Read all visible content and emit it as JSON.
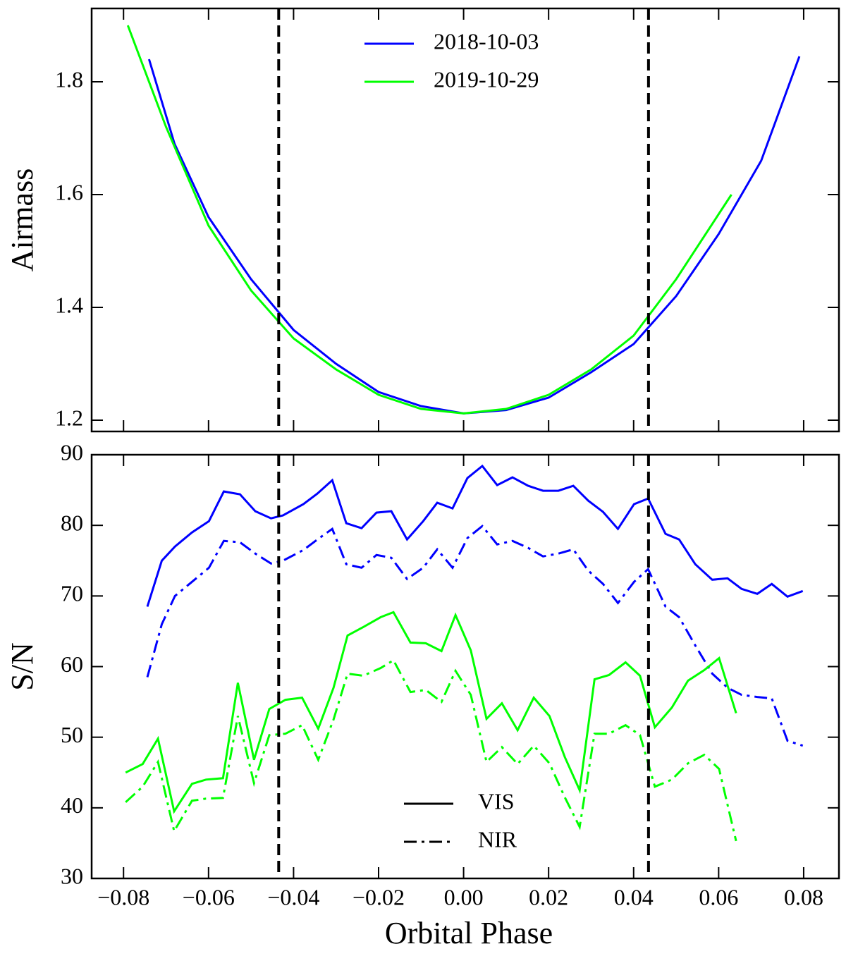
{
  "chart_data": [
    {
      "type": "line",
      "ylabel": "Airmass",
      "xlim": [
        -0.0875,
        0.0883
      ],
      "xticks": [
        {
          "value": -0.08,
          "label": "−0.08"
        },
        {
          "value": -0.06,
          "label": "−0.06"
        },
        {
          "value": -0.04,
          "label": "−0.04"
        },
        {
          "value": -0.02,
          "label": "−0.02"
        },
        {
          "value": 0,
          "label": "0.00"
        },
        {
          "value": 0.02,
          "label": "0.02"
        },
        {
          "value": 0.04,
          "label": "0.04"
        },
        {
          "value": 0.06,
          "label": "0.06"
        },
        {
          "value": 0.08,
          "label": "0.08"
        }
      ],
      "show_xtick_labels": false,
      "ylim": [
        1.18,
        1.93
      ],
      "yticks": [
        1.2,
        1.4,
        1.6,
        1.8
      ],
      "vlines": [
        -0.0435,
        0.0435
      ],
      "legend_color": null,
      "series": [
        {
          "name": "2018-10-03",
          "color": "#0000ff",
          "dash": "solid",
          "x": [
            -0.074,
            -0.068,
            -0.06,
            -0.05,
            -0.04,
            -0.03,
            -0.02,
            -0.01,
            0.0,
            0.01,
            0.02,
            0.03,
            0.04,
            0.05,
            0.06,
            0.07,
            0.079
          ],
          "values": [
            1.84,
            1.69,
            1.56,
            1.45,
            1.36,
            1.3,
            1.25,
            1.225,
            1.212,
            1.218,
            1.24,
            1.285,
            1.335,
            1.42,
            1.53,
            1.66,
            1.845
          ]
        },
        {
          "name": "2019-10-29",
          "color": "#00ff00",
          "dash": "solid",
          "x": [
            -0.079,
            -0.07,
            -0.06,
            -0.05,
            -0.04,
            -0.03,
            -0.02,
            -0.01,
            0.0,
            0.01,
            0.02,
            0.03,
            0.04,
            0.05,
            0.063
          ],
          "values": [
            1.9,
            1.72,
            1.545,
            1.43,
            1.345,
            1.29,
            1.245,
            1.22,
            1.212,
            1.22,
            1.245,
            1.29,
            1.35,
            1.45,
            1.6
          ]
        }
      ]
    },
    {
      "type": "line",
      "ylabel": "S/N",
      "xlabel": "Orbital Phase",
      "xlim": [
        -0.0875,
        0.0883
      ],
      "xticks": [
        {
          "value": -0.08,
          "label": "−0.08"
        },
        {
          "value": -0.06,
          "label": "−0.06"
        },
        {
          "value": -0.04,
          "label": "−0.04"
        },
        {
          "value": -0.02,
          "label": "−0.02"
        },
        {
          "value": 0,
          "label": "0.00"
        },
        {
          "value": 0.02,
          "label": "0.02"
        },
        {
          "value": 0.04,
          "label": "0.04"
        },
        {
          "value": 0.06,
          "label": "0.06"
        },
        {
          "value": 0.08,
          "label": "0.08"
        }
      ],
      "show_xtick_labels": true,
      "ylim": [
        30,
        90
      ],
      "yticks": [
        30,
        40,
        50,
        60,
        70,
        80,
        90
      ],
      "vlines": [
        -0.0435,
        0.0435
      ],
      "legend_color": "#000000",
      "series": [
        {
          "name": "VIS",
          "color": "#0000ff",
          "dash": "solid",
          "x": [
            -0.0744,
            -0.071,
            -0.0679,
            -0.0639,
            -0.0599,
            -0.0564,
            -0.0526,
            -0.049,
            -0.0453,
            -0.0425,
            -0.0377,
            -0.0344,
            -0.0309,
            -0.0276,
            -0.024,
            -0.0205,
            -0.017,
            -0.0133,
            -0.0095,
            -0.0062,
            -0.0026,
            0.0009,
            0.0044,
            0.0079,
            0.0115,
            0.0152,
            0.0187,
            0.0223,
            0.0258,
            0.0293,
            0.0328,
            0.0363,
            0.0401,
            0.0434,
            0.0475,
            0.0507,
            0.0545,
            0.0585,
            0.0621,
            0.0654,
            0.0691,
            0.0725,
            0.0762,
            0.0798
          ],
          "values": [
            68.5,
            75,
            77,
            79,
            80.6,
            84.8,
            84.4,
            82,
            81,
            81.4,
            83,
            84.5,
            86.4,
            80.3,
            79.6,
            81.8,
            82,
            78,
            80.6,
            83.2,
            82.4,
            86.7,
            88.4,
            85.7,
            86.8,
            85.6,
            84.9,
            84.9,
            85.6,
            83.5,
            81.9,
            79.5,
            83,
            83.8,
            78.8,
            78,
            74.5,
            72.3,
            72.5,
            71,
            70.3,
            71.7,
            69.9,
            70.7
          ]
        },
        {
          "name": "NIR",
          "color": "#0000ff",
          "dash": "dashdot",
          "x": [
            -0.0744,
            -0.071,
            -0.0679,
            -0.0639,
            -0.0599,
            -0.0564,
            -0.0526,
            -0.049,
            -0.0453,
            -0.0425,
            -0.0377,
            -0.0344,
            -0.0309,
            -0.0276,
            -0.024,
            -0.0205,
            -0.017,
            -0.0133,
            -0.0095,
            -0.0062,
            -0.0026,
            0.0009,
            0.0044,
            0.0079,
            0.0115,
            0.0152,
            0.0187,
            0.0223,
            0.0258,
            0.0293,
            0.0328,
            0.0363,
            0.0401,
            0.0434,
            0.0475,
            0.0507,
            0.0545,
            0.0585,
            0.0621,
            0.0654,
            0.0691,
            0.0725,
            0.0762,
            0.0798
          ],
          "values": [
            58.5,
            66,
            70,
            72,
            74,
            77.8,
            77.6,
            76,
            74.6,
            75,
            76.5,
            78,
            79.5,
            74.5,
            74,
            75.8,
            75.4,
            72.4,
            74,
            76.6,
            74,
            78.2,
            79.9,
            77.3,
            77.8,
            76.8,
            75.6,
            76,
            76.6,
            73.6,
            71.7,
            69,
            72,
            73.8,
            68.5,
            67,
            63,
            59,
            57,
            56,
            55.7,
            55.5,
            49.5,
            48.8
          ]
        },
        {
          "name": "VIS",
          "color": "#00ff00",
          "dash": "solid",
          "x": [
            -0.0795,
            -0.0755,
            -0.0719,
            -0.0681,
            -0.0639,
            -0.0606,
            -0.0566,
            -0.0531,
            -0.0493,
            -0.0457,
            -0.0419,
            -0.038,
            -0.0342,
            -0.0306,
            -0.0273,
            -0.0236,
            -0.0195,
            -0.0165,
            -0.0125,
            -0.0089,
            -0.0052,
            -0.0019,
            0.0017,
            0.0054,
            0.009,
            0.0127,
            0.0165,
            0.0202,
            0.0238,
            0.0273,
            0.0308,
            0.0342,
            0.0381,
            0.0415,
            0.045,
            0.049,
            0.0528,
            0.0566,
            0.0601,
            0.0641
          ],
          "values": [
            45,
            46.2,
            49.8,
            39.5,
            43.4,
            44,
            44.2,
            57.7,
            46.8,
            54,
            55.3,
            55.6,
            51.2,
            57,
            64.4,
            65.6,
            67,
            67.7,
            63.4,
            63.3,
            62.2,
            67.3,
            62.3,
            52.6,
            54.8,
            51,
            55.6,
            53,
            47.2,
            42.5,
            58.2,
            58.8,
            60.6,
            58.7,
            51.4,
            54.2,
            58,
            59.5,
            61.2,
            53.4
          ]
        },
        {
          "name": "NIR",
          "color": "#00ff00",
          "dash": "dashdot",
          "x": [
            -0.0795,
            -0.0755,
            -0.0719,
            -0.0681,
            -0.0639,
            -0.0606,
            -0.0566,
            -0.0531,
            -0.0493,
            -0.0457,
            -0.0419,
            -0.038,
            -0.0342,
            -0.0306,
            -0.0273,
            -0.0236,
            -0.0195,
            -0.0165,
            -0.0125,
            -0.0089,
            -0.0052,
            -0.0019,
            0.0017,
            0.0054,
            0.009,
            0.0127,
            0.0165,
            0.0202,
            0.0238,
            0.0273,
            0.0308,
            0.0342,
            0.0381,
            0.0415,
            0.045,
            0.049,
            0.0528,
            0.0566,
            0.0601,
            0.0641
          ],
          "values": [
            40.8,
            43,
            46.5,
            36.7,
            41,
            41.3,
            41.4,
            53,
            43.5,
            50.3,
            50.5,
            51.7,
            46.8,
            52.5,
            59,
            58.7,
            59.8,
            60.9,
            56.4,
            56.7,
            55,
            59.4,
            56,
            46.5,
            48.6,
            46.2,
            48.8,
            46.3,
            41.5,
            37.3,
            50.5,
            50.5,
            51.7,
            50.3,
            43,
            44,
            46.3,
            47.5,
            45.5,
            35.3
          ]
        }
      ]
    }
  ]
}
